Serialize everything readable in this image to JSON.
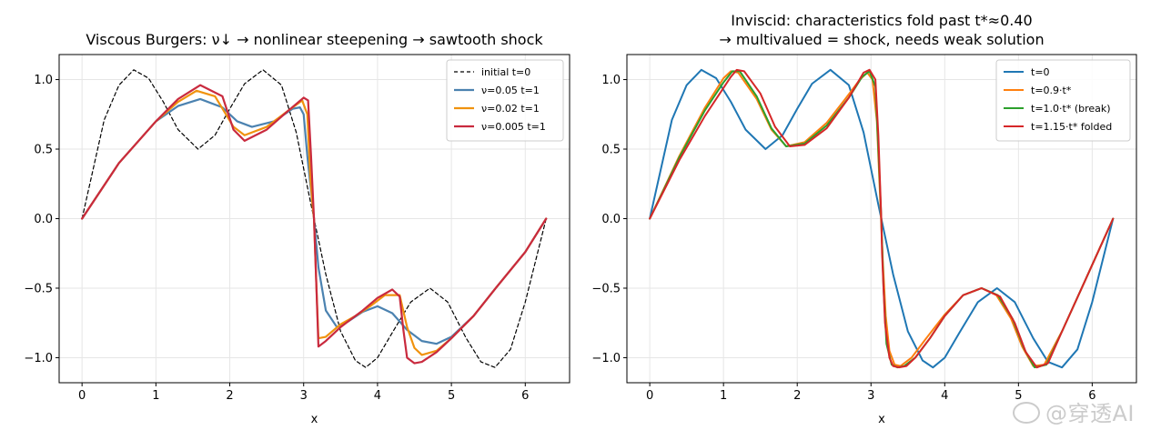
{
  "watermark": "@穿透AI",
  "chart_data": [
    {
      "type": "line",
      "title": "Viscous Burgers: ν↓ → nonlinear steepening → sawtooth shock",
      "subtitle": "",
      "xlabel": "x",
      "ylabel": "",
      "xlim": [
        -0.31,
        6.6
      ],
      "ylim": [
        -1.18,
        1.18
      ],
      "xticks": [
        0,
        1,
        2,
        3,
        4,
        5,
        6
      ],
      "xtick_labels": [
        "0",
        "1",
        "2",
        "3",
        "4",
        "5",
        "6"
      ],
      "yticks": [
        -1.0,
        -0.5,
        0.0,
        0.5,
        1.0
      ],
      "ytick_labels": [
        "−1.0",
        "−0.5",
        "0.0",
        "0.5",
        "1.0"
      ],
      "grid": true,
      "legend_position": "top-right",
      "series": [
        {
          "name": "initial t=0",
          "color": "#000000",
          "dash": "4,3",
          "width": 1.2,
          "x": [
            0,
            0.3,
            0.5,
            0.7,
            0.9,
            1.1,
            1.3,
            1.57,
            1.8,
            2.0,
            2.2,
            2.45,
            2.7,
            2.9,
            3.1,
            3.3,
            3.5,
            3.7,
            3.84,
            4.0,
            4.2,
            4.45,
            4.71,
            4.95,
            5.2,
            5.4,
            5.59,
            5.8,
            6.0,
            6.283
          ],
          "y": [
            0,
            0.71,
            0.96,
            1.07,
            1.01,
            0.84,
            0.64,
            0.5,
            0.6,
            0.79,
            0.97,
            1.07,
            0.96,
            0.62,
            0.1,
            -0.4,
            -0.81,
            -1.02,
            -1.07,
            -1.0,
            -0.82,
            -0.6,
            -0.5,
            -0.6,
            -0.86,
            -1.03,
            -1.07,
            -0.94,
            -0.6,
            0
          ]
        },
        {
          "name": "ν=0.05  t=1",
          "color": "#4b82b0",
          "dash": "",
          "width": 2.2,
          "x": [
            0,
            0.5,
            1.0,
            1.3,
            1.6,
            1.9,
            2.1,
            2.3,
            2.6,
            2.85,
            2.95,
            3.0,
            3.05,
            3.1,
            3.14,
            3.2,
            3.3,
            3.45,
            3.6,
            3.8,
            4.0,
            4.2,
            4.4,
            4.6,
            4.8,
            5.0,
            5.3,
            5.6,
            6.0,
            6.283
          ],
          "y": [
            0,
            0.4,
            0.7,
            0.81,
            0.86,
            0.8,
            0.7,
            0.66,
            0.7,
            0.79,
            0.8,
            0.75,
            0.45,
            0.2,
            0.0,
            -0.35,
            -0.66,
            -0.78,
            -0.74,
            -0.67,
            -0.63,
            -0.68,
            -0.8,
            -0.88,
            -0.9,
            -0.85,
            -0.7,
            -0.5,
            -0.24,
            0
          ]
        },
        {
          "name": "ν=0.02  t=1",
          "color": "#f0920e",
          "dash": "",
          "width": 2.2,
          "x": [
            0,
            0.5,
            1.0,
            1.3,
            1.55,
            1.8,
            2.05,
            2.2,
            2.5,
            2.8,
            2.98,
            3.05,
            3.09,
            3.12,
            3.14,
            3.17,
            3.2,
            3.3,
            3.5,
            3.7,
            3.9,
            4.1,
            4.3,
            4.4,
            4.5,
            4.6,
            4.8,
            5.0,
            5.3,
            5.6,
            6.0,
            6.283
          ],
          "y": [
            0,
            0.4,
            0.7,
            0.84,
            0.92,
            0.88,
            0.66,
            0.6,
            0.66,
            0.78,
            0.85,
            0.75,
            0.3,
            0.1,
            0.0,
            -0.45,
            -0.86,
            -0.85,
            -0.76,
            -0.7,
            -0.63,
            -0.55,
            -0.55,
            -0.78,
            -0.93,
            -0.98,
            -0.95,
            -0.86,
            -0.7,
            -0.5,
            -0.24,
            0
          ]
        },
        {
          "name": "ν=0.005  t=1",
          "color": "#c92a3e",
          "dash": "",
          "width": 2.2,
          "x": [
            0,
            0.5,
            1.0,
            1.3,
            1.6,
            1.9,
            2.05,
            2.2,
            2.5,
            2.8,
            3.0,
            3.06,
            3.1,
            3.14,
            3.17,
            3.2,
            3.3,
            3.5,
            3.8,
            4.0,
            4.2,
            4.3,
            4.35,
            4.4,
            4.5,
            4.6,
            4.8,
            5.0,
            5.3,
            5.6,
            6.0,
            6.283
          ],
          "y": [
            0,
            0.4,
            0.7,
            0.86,
            0.96,
            0.88,
            0.64,
            0.56,
            0.64,
            0.78,
            0.87,
            0.85,
            0.45,
            0.0,
            -0.45,
            -0.92,
            -0.88,
            -0.78,
            -0.66,
            -0.57,
            -0.51,
            -0.56,
            -0.8,
            -1.0,
            -1.04,
            -1.03,
            -0.96,
            -0.86,
            -0.7,
            -0.5,
            -0.24,
            0
          ]
        }
      ]
    },
    {
      "type": "line",
      "title": "Inviscid: characteristics fold past t*≈0.40",
      "subtitle": "→ multivalued = shock, needs weak solution",
      "xlabel": "x",
      "ylabel": "",
      "xlim": [
        -0.31,
        6.6
      ],
      "ylim": [
        -1.18,
        1.18
      ],
      "xticks": [
        0,
        1,
        2,
        3,
        4,
        5,
        6
      ],
      "xtick_labels": [
        "0",
        "1",
        "2",
        "3",
        "4",
        "5",
        "6"
      ],
      "yticks": [
        -1.0,
        -0.5,
        0.0,
        0.5,
        1.0
      ],
      "ytick_labels": [
        "−1.0",
        "−0.5",
        "0.0",
        "0.5",
        "1.0"
      ],
      "grid": true,
      "legend_position": "top-right",
      "series": [
        {
          "name": "t=0",
          "color": "#1f77b4",
          "dash": "",
          "width": 2.0,
          "x": [
            0,
            0.3,
            0.5,
            0.7,
            0.9,
            1.1,
            1.3,
            1.57,
            1.8,
            2.0,
            2.2,
            2.45,
            2.7,
            2.9,
            3.1,
            3.3,
            3.5,
            3.7,
            3.84,
            4.0,
            4.2,
            4.45,
            4.71,
            4.95,
            5.2,
            5.4,
            5.59,
            5.8,
            6.0,
            6.283
          ],
          "y": [
            0,
            0.71,
            0.96,
            1.07,
            1.01,
            0.84,
            0.64,
            0.5,
            0.6,
            0.79,
            0.97,
            1.07,
            0.96,
            0.62,
            0.1,
            -0.4,
            -0.81,
            -1.02,
            -1.07,
            -1.0,
            -0.82,
            -0.6,
            -0.5,
            -0.6,
            -0.86,
            -1.03,
            -1.07,
            -0.94,
            -0.6,
            0
          ]
        },
        {
          "name": "t=0.9·t*",
          "color": "#ff7f0e",
          "dash": "",
          "width": 2.0,
          "x": [
            0,
            0.4,
            0.75,
            1.0,
            1.1,
            1.2,
            1.45,
            1.65,
            1.85,
            2.1,
            2.4,
            2.65,
            2.85,
            2.95,
            3.02,
            3.08,
            3.12,
            3.16,
            3.2,
            3.25,
            3.32,
            3.4,
            3.55,
            3.75,
            4.0,
            4.25,
            4.5,
            4.7,
            4.9,
            5.05,
            5.2,
            5.35,
            5.6,
            5.9,
            6.283
          ],
          "y": [
            0,
            0.45,
            0.8,
            1.01,
            1.06,
            1.05,
            0.86,
            0.64,
            0.52,
            0.55,
            0.69,
            0.86,
            1.0,
            1.05,
            1.0,
            0.7,
            0.2,
            -0.3,
            -0.7,
            -0.95,
            -1.05,
            -1.06,
            -1.0,
            -0.86,
            -0.69,
            -0.55,
            -0.5,
            -0.55,
            -0.72,
            -0.92,
            -1.06,
            -1.05,
            -0.8,
            -0.45,
            0
          ]
        },
        {
          "name": "t=1.0·t* (break)",
          "color": "#2ca02c",
          "dash": "",
          "width": 2.0,
          "x": [
            0,
            0.4,
            0.75,
            1.0,
            1.12,
            1.22,
            1.45,
            1.65,
            1.85,
            2.1,
            2.4,
            2.7,
            2.88,
            2.98,
            3.06,
            3.1,
            3.14,
            3.17,
            3.21,
            3.28,
            3.36,
            3.45,
            3.6,
            3.8,
            4.0,
            4.25,
            4.5,
            4.72,
            4.92,
            5.08,
            5.22,
            5.38,
            5.6,
            5.9,
            6.283
          ],
          "y": [
            0,
            0.44,
            0.78,
            0.98,
            1.06,
            1.06,
            0.88,
            0.65,
            0.52,
            0.54,
            0.67,
            0.87,
            1.02,
            1.06,
            0.95,
            0.5,
            0.0,
            -0.5,
            -0.9,
            -1.05,
            -1.07,
            -1.06,
            -1.0,
            -0.86,
            -0.7,
            -0.55,
            -0.5,
            -0.55,
            -0.72,
            -0.94,
            -1.07,
            -1.05,
            -0.8,
            -0.45,
            0
          ]
        },
        {
          "name": "t=1.15·t* folded",
          "color": "#d62728",
          "dash": "",
          "width": 2.0,
          "x": [
            0,
            0.4,
            0.75,
            1.0,
            1.1,
            1.18,
            1.28,
            1.5,
            1.7,
            1.9,
            2.1,
            2.4,
            2.7,
            2.9,
            2.98,
            3.06,
            3.1,
            3.13,
            3.14,
            3.15,
            3.19,
            3.25,
            3.3,
            3.38,
            3.48,
            3.6,
            3.8,
            4.0,
            4.25,
            4.5,
            4.75,
            4.95,
            5.1,
            5.25,
            5.4,
            5.6,
            5.9,
            6.283
          ],
          "y": [
            0,
            0.42,
            0.74,
            0.94,
            1.02,
            1.07,
            1.06,
            0.9,
            0.66,
            0.52,
            0.53,
            0.65,
            0.87,
            1.05,
            1.07,
            1.0,
            0.6,
            0.15,
            0.0,
            -0.25,
            -0.75,
            -1.0,
            -1.06,
            -1.07,
            -1.06,
            -1.0,
            -0.86,
            -0.7,
            -0.55,
            -0.5,
            -0.56,
            -0.75,
            -0.96,
            -1.07,
            -1.04,
            -0.8,
            -0.45,
            0
          ]
        }
      ]
    }
  ]
}
